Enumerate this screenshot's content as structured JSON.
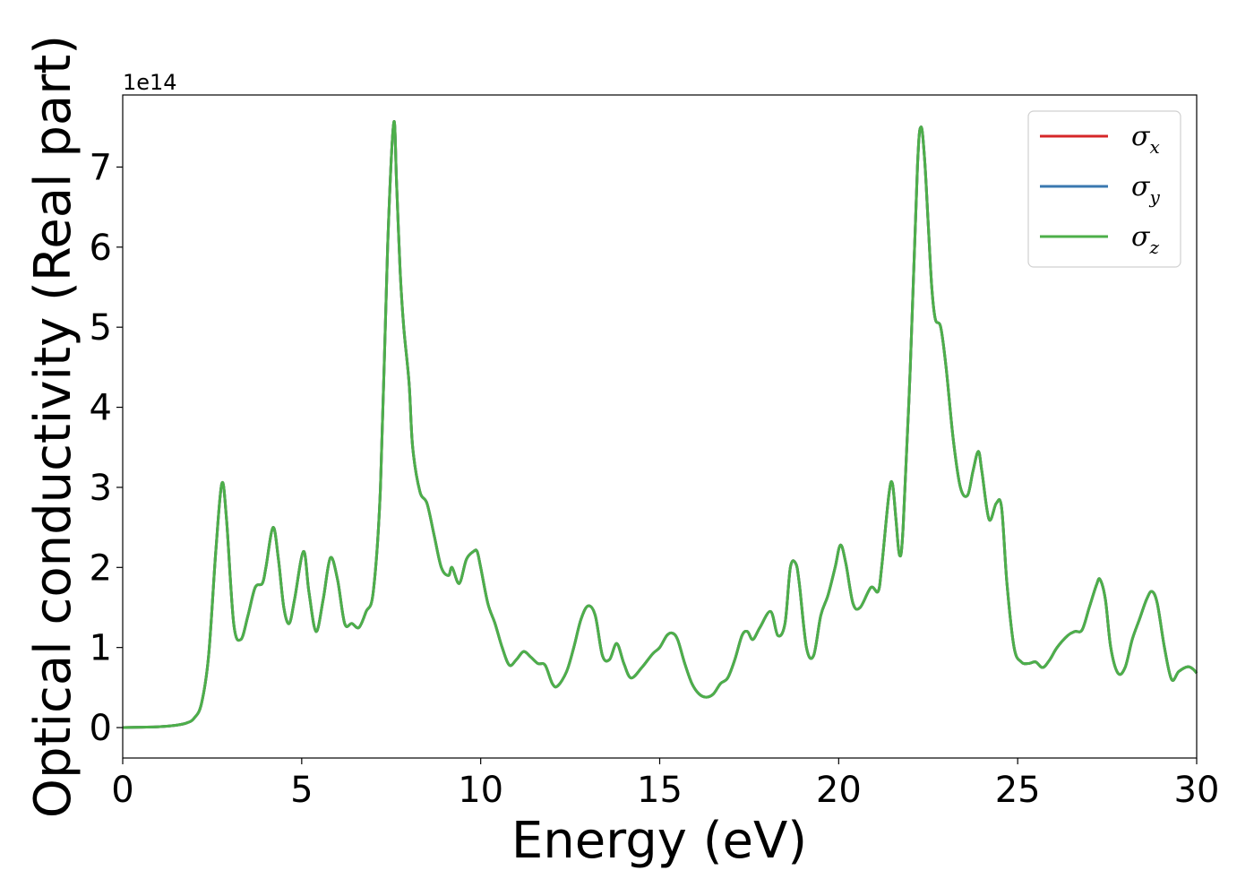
{
  "chart_data": {
    "type": "line",
    "title": "",
    "xlabel": "Energy (eV)",
    "ylabel": "Optical conductivity (Real part)",
    "y_offset_label": "1e14",
    "xlim": [
      0,
      30
    ],
    "ylim": [
      -0.38,
      7.9
    ],
    "xticks": [
      0,
      5,
      10,
      15,
      20,
      25,
      30
    ],
    "yticks": [
      0,
      1,
      2,
      3,
      4,
      5,
      6,
      7
    ],
    "grid": false,
    "legend_position": "top-right",
    "x": [
      0,
      0.5,
      1.0,
      1.5,
      1.8,
      2.0,
      2.2,
      2.4,
      2.6,
      2.77,
      2.9,
      3.1,
      3.3,
      3.5,
      3.7,
      3.9,
      4.0,
      4.2,
      4.35,
      4.5,
      4.65,
      4.8,
      5.05,
      5.2,
      5.4,
      5.6,
      5.8,
      6.0,
      6.2,
      6.4,
      6.6,
      6.8,
      7.0,
      7.2,
      7.4,
      7.57,
      7.65,
      7.75,
      7.85,
      8.0,
      8.1,
      8.3,
      8.5,
      8.7,
      8.9,
      9.1,
      9.2,
      9.4,
      9.6,
      9.8,
      9.9,
      10.0,
      10.2,
      10.4,
      10.6,
      10.8,
      11.0,
      11.2,
      11.4,
      11.6,
      11.8,
      12.0,
      12.15,
      12.4,
      12.6,
      12.8,
      13.0,
      13.2,
      13.4,
      13.6,
      13.8,
      14.0,
      14.2,
      14.5,
      14.8,
      15.0,
      15.2,
      15.35,
      15.5,
      15.7,
      15.9,
      16.1,
      16.3,
      16.5,
      16.7,
      16.9,
      17.1,
      17.3,
      17.45,
      17.6,
      17.8,
      18.1,
      18.3,
      18.5,
      18.65,
      18.8,
      18.9,
      19.1,
      19.3,
      19.5,
      19.7,
      19.9,
      20.05,
      20.2,
      20.4,
      20.6,
      20.9,
      21.1,
      21.2,
      21.4,
      21.5,
      21.6,
      21.7,
      21.8,
      22.0,
      22.2,
      22.3,
      22.4,
      22.5,
      22.6,
      22.7,
      22.85,
      23.0,
      23.2,
      23.4,
      23.6,
      23.75,
      23.9,
      24.0,
      24.2,
      24.4,
      24.55,
      24.7,
      24.9,
      25.1,
      25.3,
      25.5,
      25.7,
      25.9,
      26.1,
      26.4,
      26.6,
      26.8,
      27.0,
      27.2,
      27.3,
      27.45,
      27.6,
      27.8,
      28.0,
      28.2,
      28.4,
      28.6,
      28.75,
      28.9,
      29.1,
      29.3,
      29.5,
      29.75,
      29.9,
      30.0
    ],
    "series": [
      {
        "name": "σx",
        "symbol": "σ",
        "subscript": "x",
        "color": "#d62728",
        "values": [
          0.0,
          0.005,
          0.01,
          0.03,
          0.06,
          0.12,
          0.3,
          0.9,
          2.2,
          3.05,
          2.6,
          1.3,
          1.1,
          1.4,
          1.75,
          1.8,
          2.0,
          2.5,
          2.1,
          1.5,
          1.3,
          1.6,
          2.2,
          1.7,
          1.2,
          1.6,
          2.12,
          1.85,
          1.3,
          1.3,
          1.25,
          1.45,
          1.7,
          3.0,
          6.0,
          7.55,
          6.8,
          5.7,
          5.0,
          4.3,
          3.5,
          2.95,
          2.8,
          2.4,
          2.0,
          1.9,
          2.0,
          1.8,
          2.1,
          2.2,
          2.2,
          2.0,
          1.55,
          1.3,
          1.0,
          0.78,
          0.85,
          0.95,
          0.88,
          0.8,
          0.78,
          0.55,
          0.52,
          0.7,
          1.0,
          1.35,
          1.52,
          1.4,
          0.9,
          0.85,
          1.05,
          0.8,
          0.62,
          0.75,
          0.92,
          1.0,
          1.15,
          1.18,
          1.1,
          0.8,
          0.55,
          0.42,
          0.38,
          0.42,
          0.55,
          0.62,
          0.85,
          1.15,
          1.2,
          1.1,
          1.25,
          1.45,
          1.15,
          1.3,
          2.0,
          2.05,
          1.8,
          1.0,
          0.9,
          1.4,
          1.65,
          2.0,
          2.28,
          2.05,
          1.55,
          1.5,
          1.75,
          1.7,
          2.0,
          2.9,
          3.05,
          2.6,
          2.15,
          2.5,
          4.5,
          7.0,
          7.5,
          7.1,
          6.3,
          5.5,
          5.1,
          5.0,
          4.5,
          3.6,
          3.0,
          2.9,
          3.2,
          3.45,
          3.2,
          2.6,
          2.8,
          2.75,
          1.8,
          1.0,
          0.82,
          0.8,
          0.82,
          0.75,
          0.85,
          1.0,
          1.15,
          1.2,
          1.22,
          1.5,
          1.78,
          1.85,
          1.6,
          1.0,
          0.68,
          0.75,
          1.1,
          1.35,
          1.6,
          1.7,
          1.55,
          1.0,
          0.6,
          0.7,
          0.76,
          0.73,
          0.68
        ]
      },
      {
        "name": "σy",
        "symbol": "σ",
        "subscript": "y",
        "color": "#3a78b0",
        "values": [
          0.0,
          0.005,
          0.01,
          0.03,
          0.06,
          0.12,
          0.3,
          0.9,
          2.2,
          3.05,
          2.6,
          1.3,
          1.1,
          1.4,
          1.75,
          1.8,
          2.0,
          2.5,
          2.1,
          1.5,
          1.3,
          1.6,
          2.2,
          1.7,
          1.2,
          1.6,
          2.12,
          1.85,
          1.3,
          1.3,
          1.25,
          1.45,
          1.7,
          3.0,
          6.0,
          7.55,
          6.8,
          5.7,
          5.0,
          4.3,
          3.5,
          2.95,
          2.8,
          2.4,
          2.0,
          1.9,
          2.0,
          1.8,
          2.1,
          2.2,
          2.2,
          2.0,
          1.55,
          1.3,
          1.0,
          0.78,
          0.85,
          0.95,
          0.88,
          0.8,
          0.78,
          0.55,
          0.52,
          0.7,
          1.0,
          1.35,
          1.52,
          1.4,
          0.9,
          0.85,
          1.05,
          0.8,
          0.62,
          0.75,
          0.92,
          1.0,
          1.15,
          1.18,
          1.1,
          0.8,
          0.55,
          0.42,
          0.38,
          0.42,
          0.55,
          0.62,
          0.85,
          1.15,
          1.2,
          1.1,
          1.25,
          1.45,
          1.15,
          1.3,
          2.0,
          2.05,
          1.8,
          1.0,
          0.9,
          1.4,
          1.65,
          2.0,
          2.28,
          2.05,
          1.55,
          1.5,
          1.75,
          1.7,
          2.0,
          2.9,
          3.05,
          2.6,
          2.15,
          2.5,
          4.5,
          7.0,
          7.5,
          7.1,
          6.3,
          5.5,
          5.1,
          5.0,
          4.5,
          3.6,
          3.0,
          2.9,
          3.2,
          3.45,
          3.2,
          2.6,
          2.8,
          2.75,
          1.8,
          1.0,
          0.82,
          0.8,
          0.82,
          0.75,
          0.85,
          1.0,
          1.15,
          1.2,
          1.22,
          1.5,
          1.78,
          1.85,
          1.6,
          1.0,
          0.68,
          0.75,
          1.1,
          1.35,
          1.6,
          1.7,
          1.55,
          1.0,
          0.6,
          0.7,
          0.76,
          0.73,
          0.68
        ]
      },
      {
        "name": "σz",
        "symbol": "σ",
        "subscript": "z",
        "color": "#4daf4a",
        "values": [
          0.0,
          0.005,
          0.01,
          0.03,
          0.06,
          0.12,
          0.3,
          0.9,
          2.2,
          3.05,
          2.6,
          1.3,
          1.1,
          1.4,
          1.75,
          1.8,
          2.0,
          2.5,
          2.1,
          1.5,
          1.3,
          1.6,
          2.2,
          1.7,
          1.2,
          1.6,
          2.12,
          1.85,
          1.3,
          1.3,
          1.25,
          1.45,
          1.7,
          3.0,
          6.0,
          7.55,
          6.8,
          5.7,
          5.0,
          4.3,
          3.5,
          2.95,
          2.8,
          2.4,
          2.0,
          1.9,
          2.0,
          1.8,
          2.1,
          2.2,
          2.2,
          2.0,
          1.55,
          1.3,
          1.0,
          0.78,
          0.85,
          0.95,
          0.88,
          0.8,
          0.78,
          0.55,
          0.52,
          0.7,
          1.0,
          1.35,
          1.52,
          1.4,
          0.9,
          0.85,
          1.05,
          0.8,
          0.62,
          0.75,
          0.92,
          1.0,
          1.15,
          1.18,
          1.1,
          0.8,
          0.55,
          0.42,
          0.38,
          0.42,
          0.55,
          0.62,
          0.85,
          1.15,
          1.2,
          1.1,
          1.25,
          1.45,
          1.15,
          1.3,
          2.0,
          2.05,
          1.8,
          1.0,
          0.9,
          1.4,
          1.65,
          2.0,
          2.28,
          2.05,
          1.55,
          1.5,
          1.75,
          1.7,
          2.0,
          2.9,
          3.05,
          2.6,
          2.15,
          2.5,
          4.5,
          7.0,
          7.5,
          7.1,
          6.3,
          5.5,
          5.1,
          5.0,
          4.5,
          3.6,
          3.0,
          2.9,
          3.2,
          3.45,
          3.2,
          2.6,
          2.8,
          2.75,
          1.8,
          1.0,
          0.82,
          0.8,
          0.82,
          0.75,
          0.85,
          1.0,
          1.15,
          1.2,
          1.22,
          1.5,
          1.78,
          1.85,
          1.6,
          1.0,
          0.68,
          0.75,
          1.1,
          1.35,
          1.6,
          1.7,
          1.55,
          1.0,
          0.6,
          0.7,
          0.76,
          0.73,
          0.68
        ]
      }
    ]
  }
}
